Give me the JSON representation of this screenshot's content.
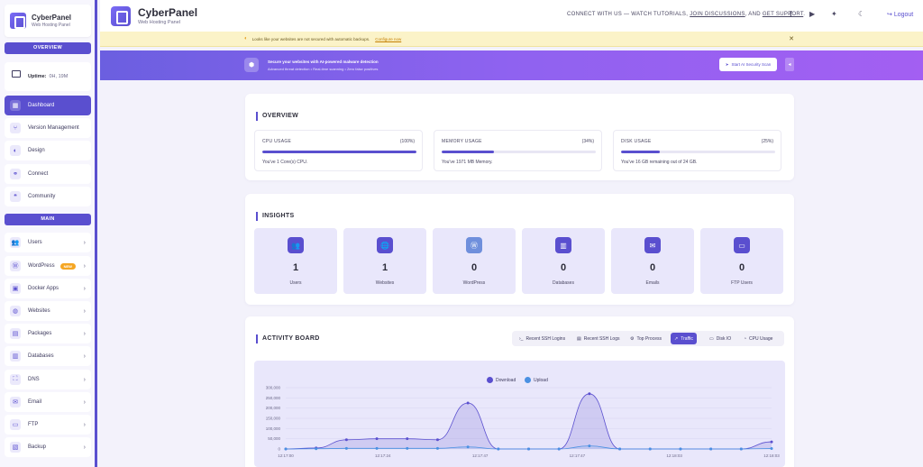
{
  "sidebar": {
    "brand_title": "CyberPanel",
    "brand_sub": "Web Hosting Panel",
    "overview_label": "OVERVIEW",
    "uptime_label": "Uptime:",
    "uptime_value": "0H, 19M",
    "main_label": "MAIN",
    "top_items": [
      {
        "label": "Dashboard",
        "icon": "▦"
      },
      {
        "label": "Version Management",
        "icon": "⑂"
      },
      {
        "label": "Design",
        "icon": "◐"
      },
      {
        "label": "Connect",
        "icon": "⚭"
      },
      {
        "label": "Community",
        "icon": "❝"
      }
    ],
    "main_items": [
      {
        "label": "Users",
        "icon": "👥"
      },
      {
        "label": "WordPress",
        "icon": "Ⓦ",
        "badge": "NEW"
      },
      {
        "label": "Docker Apps",
        "icon": "▣"
      },
      {
        "label": "Websites",
        "icon": "◍"
      },
      {
        "label": "Packages",
        "icon": "▤"
      },
      {
        "label": "Databases",
        "icon": "▥"
      },
      {
        "label": "DNS",
        "icon": "⛶"
      },
      {
        "label": "Email",
        "icon": "✉"
      },
      {
        "label": "FTP",
        "icon": "▭"
      },
      {
        "label": "Backup",
        "icon": "▧"
      }
    ]
  },
  "header": {
    "title": "CyberPanel",
    "subtitle": "Web Hosting Panel",
    "connect_prefix": "CONNECT WITH US — WATCH TUTORIALS,",
    "join_link": "JOIN DISCUSSIONS",
    "and_text": ", AND",
    "support_link": "GET SUPPORT",
    "support_suffix": ".",
    "logout": "Logout"
  },
  "warning_banner": {
    "text": "Looks like your websites are not secured with automatic backups.",
    "link": "Configure now"
  },
  "promo_banner": {
    "title": "Secure your websites with AI-powered malware detection",
    "subtitle": "Advanced threat detection • Real-time scanning • Zero false positives",
    "button": "Start AI Security Scan"
  },
  "overview": {
    "title": "OVERVIEW",
    "cards": [
      {
        "label": "CPU USAGE",
        "pct": "(100%)",
        "fill": 100,
        "note": "You've 1 Core(s) CPU."
      },
      {
        "label": "MEMORY USAGE",
        "pct": "(34%)",
        "fill": 34,
        "note": "You've 1971 MB Memory."
      },
      {
        "label": "DISK USAGE",
        "pct": "(25%)",
        "fill": 25,
        "note": "You've 16 GB remaining out of 24 GB."
      }
    ]
  },
  "insights": {
    "title": "INSIGHTS",
    "items": [
      {
        "value": "1",
        "label": "Users",
        "icon": "👥"
      },
      {
        "value": "1",
        "label": "Websites",
        "icon": "🌐"
      },
      {
        "value": "0",
        "label": "WordPress",
        "icon": "Ⓦ"
      },
      {
        "value": "0",
        "label": "Databases",
        "icon": "▥"
      },
      {
        "value": "0",
        "label": "Emails",
        "icon": "✉"
      },
      {
        "value": "0",
        "label": "FTP Users",
        "icon": "▭"
      }
    ]
  },
  "activity": {
    "title": "ACTIVITY BOARD",
    "tabs": [
      {
        "label": "Recent SSH Logins",
        "icon": "›_"
      },
      {
        "label": "Recent SSH Logs",
        "icon": "▤"
      },
      {
        "label": "Top Process",
        "icon": "⚙"
      },
      {
        "label": "Traffic",
        "icon": "↗",
        "active": true
      },
      {
        "label": "Disk IO",
        "icon": "▭"
      },
      {
        "label": "CPU Usage",
        "icon": "◔"
      }
    ]
  },
  "chart_data": {
    "type": "area",
    "x_ticks": [
      "12:17:00",
      "12:17:24",
      "12:17:47",
      "12:17:47",
      "12:18:03",
      "12:18:03"
    ],
    "y_ticks": [
      "300,000",
      "250,000",
      "200,000",
      "150,000",
      "100,000",
      "50,000",
      "0"
    ],
    "ylim": [
      0,
      300000
    ],
    "series": [
      {
        "name": "Download",
        "color": "#5a4fcf",
        "values": [
          0,
          5000,
          45000,
          50000,
          50000,
          45000,
          225000,
          0,
          0,
          0,
          270000,
          0,
          0,
          0,
          0,
          0,
          35000
        ]
      },
      {
        "name": "Upload",
        "color": "#4a90e2",
        "values": [
          0,
          1000,
          3000,
          3000,
          3000,
          3000,
          10000,
          0,
          0,
          0,
          15000,
          0,
          0,
          0,
          0,
          0,
          2000
        ]
      }
    ]
  }
}
